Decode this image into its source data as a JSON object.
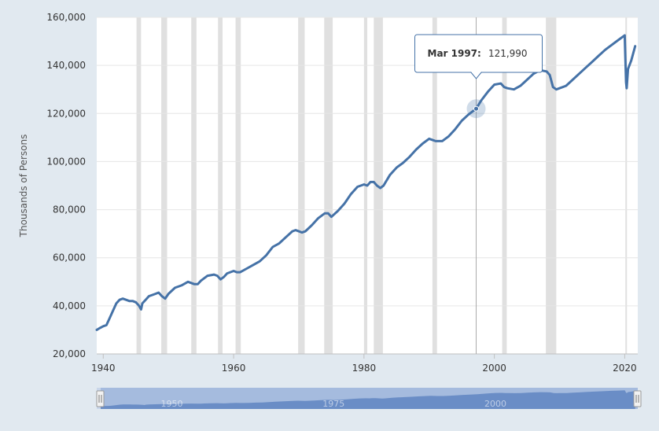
{
  "chart_data": {
    "type": "line",
    "title": "",
    "xlabel": "",
    "ylabel": "Thousands of Persons",
    "xlim": [
      1939,
      2022
    ],
    "ylim": [
      20000,
      160000
    ],
    "y_ticks": [
      20000,
      40000,
      60000,
      80000,
      100000,
      120000,
      140000,
      160000
    ],
    "y_tick_labels": [
      "20,000",
      "40,000",
      "60,000",
      "80,000",
      "100,000",
      "120,000",
      "140,000",
      "160,000"
    ],
    "x_ticks": [
      1940,
      1960,
      1980,
      2000,
      2020
    ],
    "x_tick_labels": [
      "1940",
      "1960",
      "1980",
      "2000",
      "2020"
    ],
    "grid": "horizontal",
    "colors": {
      "series": "#4572a7",
      "recession": "#e0e0e0",
      "background": "#e1e9f0",
      "plot": "#ffffff"
    },
    "recessions": [
      [
        1945.1,
        1945.8
      ],
      [
        1948.9,
        1949.8
      ],
      [
        1953.5,
        1954.3
      ],
      [
        1957.6,
        1958.3
      ],
      [
        1960.3,
        1961.1
      ],
      [
        1969.9,
        1970.9
      ],
      [
        1973.9,
        1975.2
      ],
      [
        1980.0,
        1980.5
      ],
      [
        1981.5,
        1982.9
      ],
      [
        1990.5,
        1991.2
      ],
      [
        2001.2,
        2001.9
      ],
      [
        2007.9,
        2009.5
      ],
      [
        2020.1,
        2020.3
      ]
    ],
    "series": [
      {
        "x": [
          1939.0,
          1939.5,
          1940.0,
          1940.5,
          1941.0,
          1941.5,
          1942.0,
          1942.5,
          1943.0,
          1943.5,
          1944.0,
          1944.5,
          1945.0,
          1945.5,
          1945.8,
          1946.0,
          1946.5,
          1947.0,
          1948.0,
          1948.5,
          1949.0,
          1949.5,
          1950.0,
          1951.0,
          1952.0,
          1953.0,
          1954.0,
          1954.5,
          1955.0,
          1956.0,
          1957.0,
          1957.5,
          1958.0,
          1958.5,
          1959.0,
          1960.0,
          1960.5,
          1961.0,
          1962.0,
          1963.0,
          1964.0,
          1965.0,
          1966.0,
          1967.0,
          1968.0,
          1969.0,
          1969.5,
          1970.0,
          1970.5,
          1971.0,
          1972.0,
          1973.0,
          1974.0,
          1974.5,
          1975.0,
          1976.0,
          1977.0,
          1978.0,
          1979.0,
          1980.0,
          1980.5,
          1981.0,
          1981.5,
          1982.0,
          1982.5,
          1983.0,
          1984.0,
          1985.0,
          1986.0,
          1987.0,
          1988.0,
          1989.0,
          1990.0,
          1990.5,
          1991.0,
          1992.0,
          1993.0,
          1994.0,
          1995.0,
          1996.0,
          1997.21,
          1998.0,
          1999.0,
          2000.0,
          2001.0,
          2001.5,
          2002.0,
          2003.0,
          2004.0,
          2005.0,
          2006.0,
          2007.0,
          2008.0,
          2008.5,
          2009.0,
          2009.5,
          2010.0,
          2011.0,
          2012.0,
          2013.0,
          2014.0,
          2015.0,
          2016.0,
          2017.0,
          2018.0,
          2019.0,
          2020.0,
          2020.2,
          2020.3,
          2020.5,
          2021.0,
          2021.6
        ],
        "y": [
          30000,
          30800,
          31500,
          32000,
          35000,
          38000,
          41000,
          42500,
          43000,
          42500,
          42000,
          42000,
          41500,
          40000,
          38500,
          41000,
          42500,
          44000,
          45000,
          45500,
          44000,
          43000,
          45000,
          47500,
          48500,
          50000,
          49000,
          49000,
          50500,
          52500,
          53000,
          52500,
          51000,
          52000,
          53500,
          54500,
          54000,
          54000,
          55500,
          57000,
          58500,
          61000,
          64500,
          66000,
          68500,
          71000,
          71500,
          71000,
          70500,
          71000,
          73500,
          76500,
          78500,
          78500,
          77000,
          79500,
          82500,
          86500,
          89500,
          90500,
          90000,
          91500,
          91500,
          90000,
          89000,
          90000,
          94500,
          97500,
          99500,
          102000,
          105000,
          107500,
          109500,
          109000,
          108500,
          108500,
          110500,
          113500,
          117000,
          119500,
          121990,
          125500,
          129000,
          132000,
          132500,
          131000,
          130500,
          130000,
          131500,
          134000,
          136500,
          138000,
          137500,
          136000,
          131000,
          130000,
          130500,
          131500,
          134000,
          136500,
          139000,
          141500,
          144000,
          146500,
          148500,
          150500,
          152500,
          133000,
          130500,
          138500,
          142000,
          148000
        ]
      }
    ],
    "tooltip": {
      "date": "Mar 1997:",
      "value": "121,990",
      "x": 1997.21,
      "y": 121990
    },
    "navigator": {
      "labels": [
        "1950",
        "1975",
        "2000"
      ],
      "label_years": [
        1950,
        1975,
        2000
      ]
    }
  }
}
